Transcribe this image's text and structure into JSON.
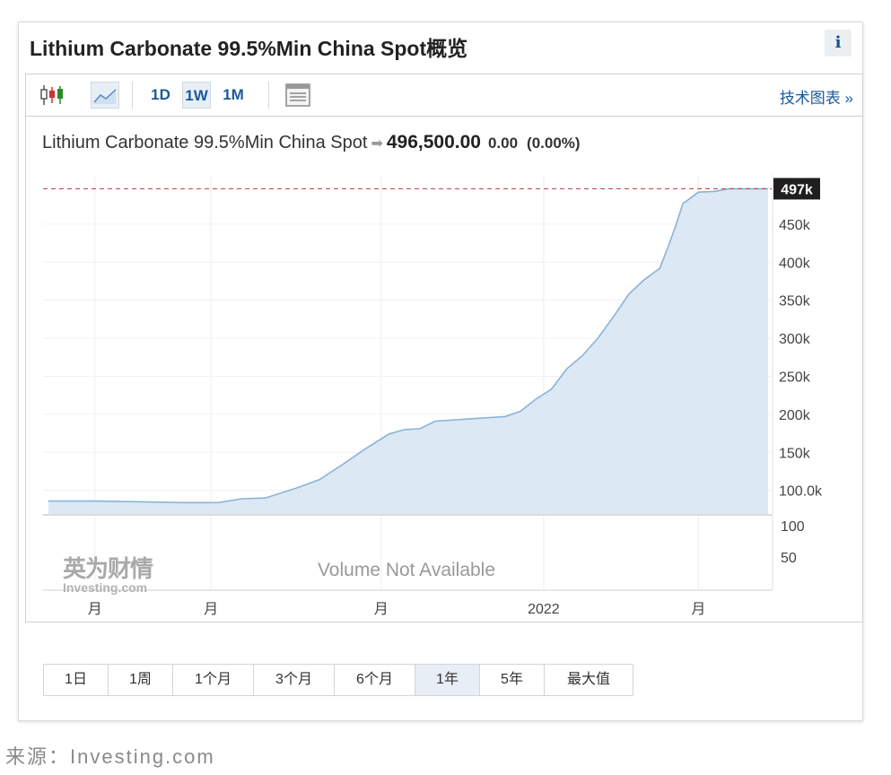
{
  "card": {
    "title": "Lithium Carbonate 99.5%Min China Spot概览",
    "info_label": "i"
  },
  "toolbar": {
    "candles_icon": "candlestick-icon",
    "area_icon": "area-chart-icon",
    "intervals": [
      "1D",
      "1W",
      "1M"
    ],
    "active_interval": "1W",
    "table_icon": "table-icon",
    "tech_link": "技术图表 »"
  },
  "quote": {
    "name": "Lithium Carbonate 99.5%Min China Spot",
    "arrow": "➡",
    "price": "496,500.00",
    "change": "0.00",
    "change_pct": "(0.00%)"
  },
  "volume": {
    "message": "Volume Not Available",
    "ticks": [
      "100",
      "50"
    ]
  },
  "watermark": {
    "cn": "英为财情",
    "en": "Investing.com"
  },
  "ranges": {
    "items": [
      "1日",
      "1周",
      "1个月",
      "3个月",
      "6个月",
      "1年",
      "5年",
      "最大值"
    ],
    "active": "1年"
  },
  "source": "来源：Investing.com",
  "colors": {
    "area_fill": "#dce8f3",
    "area_line": "#8ab3d9",
    "last_line": "#c0504d",
    "last_badge": "#1f1f1f",
    "link": "#1a5a9a"
  },
  "chart_data": {
    "type": "area",
    "series": [
      {
        "values": [
          [
            0,
            86000
          ],
          [
            6,
            86000
          ],
          [
            12,
            85000
          ],
          [
            17,
            84000
          ],
          [
            22,
            84000
          ],
          [
            25,
            89000
          ],
          [
            28,
            90000
          ],
          [
            32,
            103000
          ],
          [
            35,
            114000
          ],
          [
            38,
            134000
          ],
          [
            41,
            155000
          ],
          [
            44,
            174000
          ],
          [
            46,
            180000
          ],
          [
            48,
            181000
          ],
          [
            50,
            191000
          ],
          [
            53,
            193000
          ],
          [
            56,
            195000
          ],
          [
            59,
            197000
          ],
          [
            61,
            204000
          ],
          [
            63,
            220000
          ],
          [
            65,
            233000
          ],
          [
            67,
            260000
          ],
          [
            69,
            277000
          ],
          [
            71,
            300000
          ],
          [
            73,
            328000
          ],
          [
            75,
            358000
          ],
          [
            77,
            377000
          ],
          [
            79,
            392000
          ],
          [
            80,
            418000
          ],
          [
            81,
            446000
          ],
          [
            82,
            477000
          ],
          [
            84,
            492000
          ],
          [
            86,
            493000
          ],
          [
            88,
            496500
          ],
          [
            93,
            496500
          ]
        ]
      }
    ],
    "x_tick_positions": [
      6,
      21,
      43,
      64,
      84
    ],
    "x_tick_labels": [
      "月",
      "月",
      "月",
      "2022",
      "月"
    ],
    "y_ticks": [
      100000,
      150000,
      200000,
      250000,
      300000,
      350000,
      400000,
      450000
    ],
    "y_tick_labels": [
      "100.0k",
      "150k",
      "200k",
      "250k",
      "300k",
      "350k",
      "400k",
      "450k"
    ],
    "last_value": 496500,
    "last_label": "497k",
    "ylim": [
      69000,
      497000
    ],
    "xlim": [
      0,
      93
    ],
    "grid": true
  }
}
